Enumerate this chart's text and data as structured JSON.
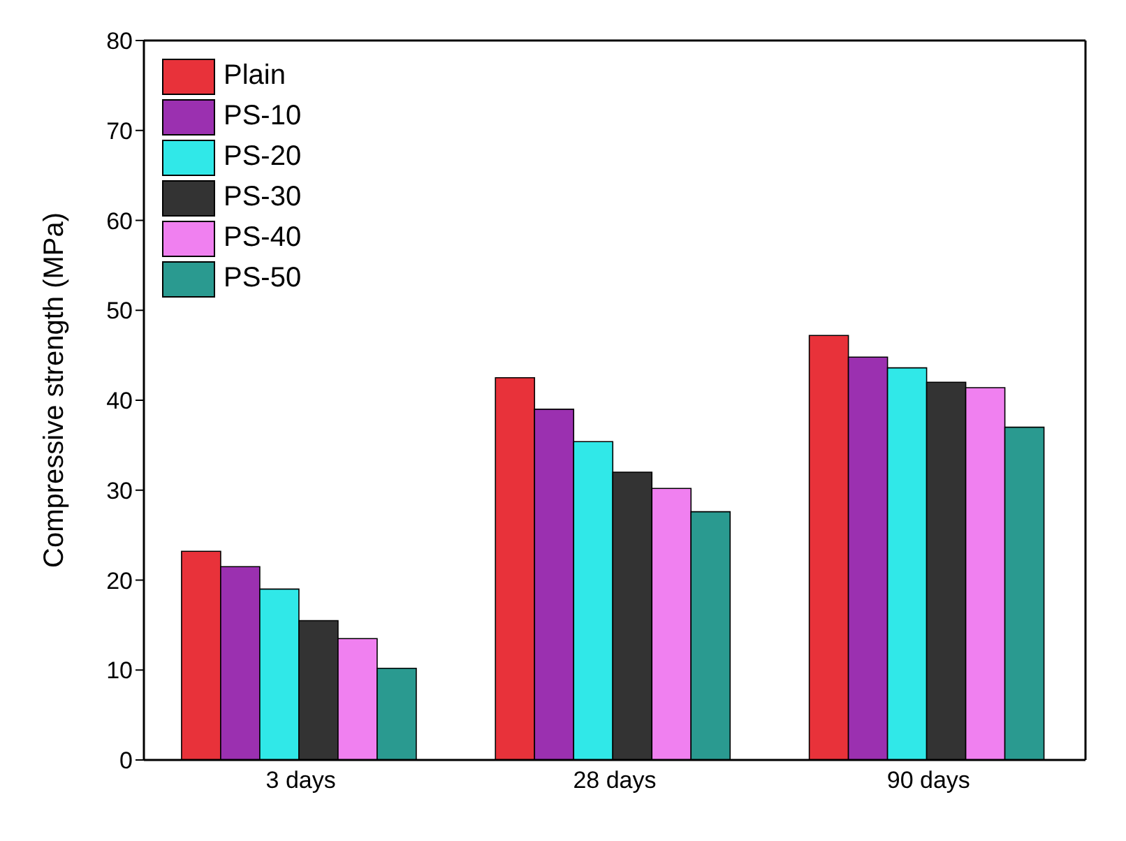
{
  "chart_data": {
    "type": "bar",
    "ylabel": "Compressive strength (MPa)",
    "categories": [
      "3 days",
      "28 days",
      "90 days"
    ],
    "series": [
      {
        "name": "Plain",
        "color": "#e8323a",
        "values": [
          23.2,
          42.5,
          47.2
        ]
      },
      {
        "name": "PS-10",
        "color": "#9b30b0",
        "values": [
          21.5,
          39,
          44.8
        ]
      },
      {
        "name": "PS-20",
        "color": "#30e8e8",
        "values": [
          19,
          35.4,
          43.6
        ]
      },
      {
        "name": "PS-30",
        "color": "#333333",
        "values": [
          15.5,
          32,
          42
        ]
      },
      {
        "name": "PS-40",
        "color": "#f080f0",
        "values": [
          13.5,
          30.2,
          41.4
        ]
      },
      {
        "name": "PS-50",
        "color": "#2a9a90",
        "values": [
          10.2,
          27.6,
          37
        ]
      }
    ],
    "ylim": [
      0,
      80
    ],
    "yticks": [
      0,
      10,
      20,
      30,
      40,
      50,
      60,
      70,
      80
    ],
    "grid": false,
    "legend": "top left"
  }
}
